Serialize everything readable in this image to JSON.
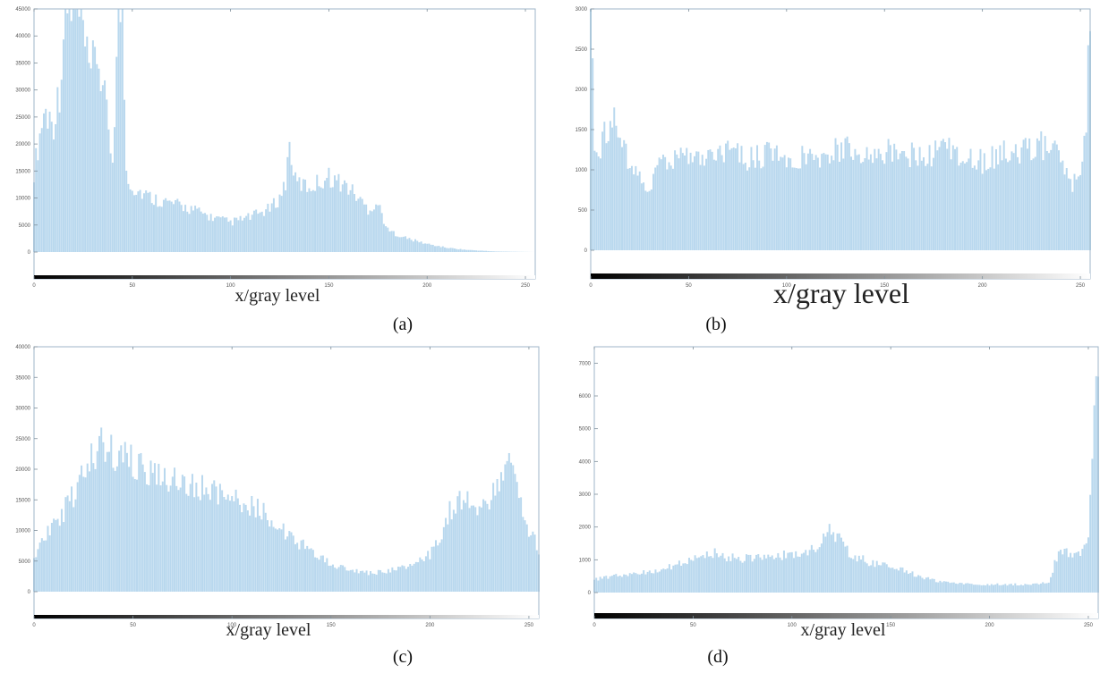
{
  "colors": {
    "bar": "#b9d8ee",
    "frame": "#9fb6c8",
    "gradient_start": "#000000",
    "gradient_end": "#ffffff"
  },
  "chart_data": [
    {
      "type": "bar",
      "panel": "(a)",
      "xlabel": "x/gray level",
      "caption": "(a)",
      "xlim": [
        0,
        255
      ],
      "ylim": [
        0,
        45000
      ],
      "xticks": [
        0,
        50,
        100,
        150,
        200,
        250
      ],
      "yticks": [
        0,
        5000,
        10000,
        15000,
        20000,
        25000,
        30000,
        35000,
        40000,
        45000
      ],
      "grid": false,
      "histogram_points": [
        [
          0,
          15000
        ],
        [
          5,
          26000
        ],
        [
          10,
          24000
        ],
        [
          13,
          30000
        ],
        [
          16,
          45000
        ],
        [
          20,
          45000
        ],
        [
          25,
          41000
        ],
        [
          28,
          32000
        ],
        [
          32,
          37000
        ],
        [
          36,
          28000
        ],
        [
          40,
          17000
        ],
        [
          43,
          45000
        ],
        [
          45,
          45000
        ],
        [
          47,
          15000
        ],
        [
          50,
          12000
        ],
        [
          60,
          10000
        ],
        [
          70,
          9000
        ],
        [
          80,
          8000
        ],
        [
          90,
          6500
        ],
        [
          100,
          5500
        ],
        [
          110,
          6500
        ],
        [
          120,
          8000
        ],
        [
          125,
          10000
        ],
        [
          128,
          13000
        ],
        [
          130,
          20000
        ],
        [
          133,
          13000
        ],
        [
          140,
          12000
        ],
        [
          150,
          14000
        ],
        [
          160,
          12000
        ],
        [
          170,
          8000
        ],
        [
          175,
          9000
        ],
        [
          180,
          4000
        ],
        [
          190,
          2500
        ],
        [
          200,
          1500
        ],
        [
          210,
          800
        ],
        [
          220,
          400
        ],
        [
          235,
          100
        ],
        [
          255,
          0
        ]
      ]
    },
    {
      "type": "bar",
      "panel": "(b)",
      "xlabel": "x/gray level",
      "caption": "(b)",
      "xlim": [
        0,
        255
      ],
      "ylim": [
        0,
        3000
      ],
      "xticks": [
        0,
        50,
        100,
        150,
        200,
        250
      ],
      "yticks": [
        0,
        500,
        1000,
        1500,
        2000,
        2500,
        3000
      ],
      "grid": false,
      "histogram_points": [
        [
          0,
          3000
        ],
        [
          2,
          1200
        ],
        [
          5,
          1300
        ],
        [
          10,
          1600
        ],
        [
          15,
          1500
        ],
        [
          20,
          1000
        ],
        [
          25,
          900
        ],
        [
          30,
          800
        ],
        [
          35,
          1050
        ],
        [
          40,
          1100
        ],
        [
          50,
          1150
        ],
        [
          60,
          1100
        ],
        [
          70,
          1200
        ],
        [
          80,
          1150
        ],
        [
          90,
          1200
        ],
        [
          100,
          1100
        ],
        [
          110,
          1200
        ],
        [
          120,
          1150
        ],
        [
          130,
          1300
        ],
        [
          140,
          1150
        ],
        [
          150,
          1250
        ],
        [
          160,
          1200
        ],
        [
          170,
          1150
        ],
        [
          180,
          1250
        ],
        [
          190,
          1200
        ],
        [
          200,
          1100
        ],
        [
          210,
          1200
        ],
        [
          220,
          1250
        ],
        [
          230,
          1300
        ],
        [
          240,
          1200
        ],
        [
          245,
          800
        ],
        [
          250,
          1000
        ],
        [
          253,
          1600
        ],
        [
          255,
          3000
        ]
      ]
    },
    {
      "type": "bar",
      "panel": "(c)",
      "xlabel": "x/gray level",
      "caption": "(c)",
      "xlim": [
        0,
        255
      ],
      "ylim": [
        0,
        40000
      ],
      "xticks": [
        0,
        50,
        100,
        150,
        200,
        250
      ],
      "yticks": [
        0,
        5000,
        10000,
        15000,
        20000,
        25000,
        30000,
        35000,
        40000
      ],
      "grid": false,
      "histogram_points": [
        [
          0,
          5000
        ],
        [
          5,
          8500
        ],
        [
          10,
          11000
        ],
        [
          15,
          13000
        ],
        [
          20,
          16000
        ],
        [
          25,
          20000
        ],
        [
          30,
          23000
        ],
        [
          35,
          24000
        ],
        [
          40,
          23000
        ],
        [
          50,
          21000
        ],
        [
          60,
          19000
        ],
        [
          70,
          18000
        ],
        [
          80,
          17500
        ],
        [
          90,
          16500
        ],
        [
          100,
          15000
        ],
        [
          110,
          14000
        ],
        [
          120,
          12000
        ],
        [
          130,
          9000
        ],
        [
          140,
          6500
        ],
        [
          150,
          4500
        ],
        [
          160,
          3500
        ],
        [
          170,
          3000
        ],
        [
          180,
          3500
        ],
        [
          190,
          4500
        ],
        [
          200,
          6000
        ],
        [
          205,
          9000
        ],
        [
          210,
          13000
        ],
        [
          215,
          15000
        ],
        [
          220,
          14500
        ],
        [
          225,
          12500
        ],
        [
          230,
          15000
        ],
        [
          235,
          17000
        ],
        [
          240,
          20000
        ],
        [
          245,
          17000
        ],
        [
          250,
          10000
        ],
        [
          255,
          7000
        ]
      ]
    },
    {
      "type": "bar",
      "panel": "(d)",
      "xlabel": "x/gray level",
      "caption": "(d)",
      "xlim": [
        0,
        255
      ],
      "ylim": [
        0,
        7500
      ],
      "xticks": [
        0,
        50,
        100,
        150,
        200,
        250
      ],
      "yticks": [
        0,
        1000,
        2000,
        3000,
        4000,
        5000,
        6000,
        7000
      ],
      "grid": false,
      "histogram_points": [
        [
          0,
          400
        ],
        [
          10,
          500
        ],
        [
          20,
          600
        ],
        [
          30,
          650
        ],
        [
          40,
          800
        ],
        [
          50,
          1000
        ],
        [
          60,
          1200
        ],
        [
          70,
          1050
        ],
        [
          80,
          1050
        ],
        [
          90,
          1100
        ],
        [
          100,
          1150
        ],
        [
          110,
          1300
        ],
        [
          115,
          1500
        ],
        [
          120,
          2000
        ],
        [
          125,
          1500
        ],
        [
          130,
          1150
        ],
        [
          140,
          900
        ],
        [
          150,
          800
        ],
        [
          160,
          600
        ],
        [
          170,
          400
        ],
        [
          180,
          300
        ],
        [
          190,
          250
        ],
        [
          200,
          250
        ],
        [
          210,
          250
        ],
        [
          220,
          250
        ],
        [
          230,
          300
        ],
        [
          235,
          1300
        ],
        [
          240,
          1200
        ],
        [
          245,
          1200
        ],
        [
          250,
          1500
        ],
        [
          252,
          4000
        ],
        [
          255,
          7500
        ]
      ]
    }
  ]
}
